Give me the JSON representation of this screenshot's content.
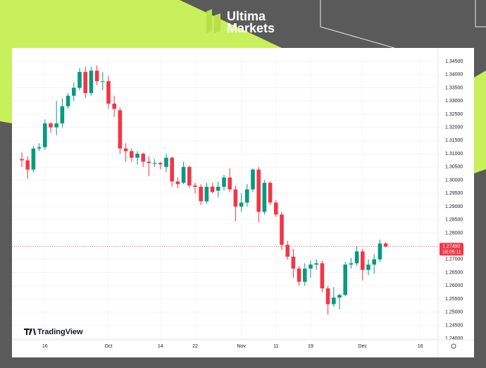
{
  "brand": {
    "line1": "Ultima",
    "line2": "Markets"
  },
  "chart_data": {
    "type": "candlestick",
    "watermark": "TradingView",
    "categories": [
      null,
      null,
      null,
      null,
      "16",
      null,
      null,
      null,
      null,
      null,
      null,
      null,
      null,
      null,
      null,
      "Oct",
      null,
      null,
      null,
      null,
      null,
      null,
      null,
      null,
      "14",
      null,
      null,
      null,
      null,
      null,
      "22",
      null,
      null,
      null,
      null,
      null,
      null,
      null,
      "Nov",
      null,
      null,
      null,
      null,
      null,
      "11",
      null,
      null,
      null,
      null,
      null,
      "19",
      null,
      null,
      null,
      null,
      null,
      null,
      null,
      null,
      "Dec",
      null,
      null,
      null,
      null,
      null,
      null,
      null,
      null,
      null,
      "16",
      null,
      null
    ],
    "open": [
      1.308,
      1.3075,
      1.304,
      1.312,
      1.3125,
      1.3215,
      1.32,
      1.3215,
      1.328,
      1.332,
      1.335,
      1.341,
      1.333,
      1.3415,
      1.3375,
      1.3375,
      1.329,
      1.3265,
      1.312,
      1.311,
      1.3085,
      1.31,
      1.307,
      1.3065,
      1.3065,
      1.305,
      1.3085,
      1.2995,
      1.299,
      1.305,
      1.298,
      1.2975,
      1.292,
      1.2975,
      1.296,
      1.2975,
      1.301,
      1.2965,
      1.29,
      1.2915,
      1.2965,
      1.304,
      1.288,
      1.299,
      1.2915,
      1.287,
      1.2755,
      1.271,
      1.2665,
      1.2615,
      1.2665,
      1.268,
      1.2685,
      1.259,
      1.253,
      1.2555,
      1.2565,
      1.268,
      1.2685,
      1.273,
      1.266,
      1.268,
      1.27,
      1.276,
      null,
      null,
      null,
      null,
      null,
      null,
      null,
      null
    ],
    "high": [
      1.3105,
      1.309,
      1.313,
      1.314,
      1.323,
      1.322,
      1.33,
      1.331,
      1.333,
      1.337,
      1.3425,
      1.343,
      1.343,
      1.3435,
      1.341,
      1.3395,
      1.332,
      1.3275,
      1.314,
      1.312,
      1.311,
      1.3105,
      1.309,
      1.308,
      1.307,
      1.31,
      1.309,
      1.301,
      1.307,
      1.3055,
      1.299,
      1.2985,
      1.299,
      1.299,
      1.2995,
      1.302,
      1.3045,
      1.298,
      1.295,
      1.2985,
      1.3045,
      1.305,
      1.3,
      1.2995,
      1.2925,
      1.288,
      1.277,
      1.274,
      1.2675,
      1.2685,
      1.2695,
      1.27,
      1.2695,
      1.26,
      1.2595,
      1.257,
      1.269,
      1.2705,
      1.275,
      1.274,
      1.27,
      1.272,
      1.2775,
      1.2765,
      null,
      null,
      null,
      null,
      null,
      null,
      null,
      null
    ],
    "low": [
      1.305,
      1.3005,
      1.303,
      1.311,
      1.3115,
      1.318,
      1.317,
      1.32,
      1.327,
      1.33,
      1.334,
      1.331,
      1.332,
      1.336,
      1.334,
      1.327,
      1.324,
      1.31,
      1.307,
      1.307,
      1.306,
      1.305,
      1.3015,
      1.305,
      1.304,
      1.303,
      1.2975,
      1.297,
      1.2985,
      1.297,
      1.295,
      1.2905,
      1.291,
      1.295,
      1.2935,
      1.296,
      1.2955,
      1.2845,
      1.288,
      1.29,
      1.2955,
      1.284,
      1.287,
      1.2905,
      1.286,
      1.2735,
      1.27,
      1.263,
      1.26,
      1.26,
      1.263,
      1.266,
      1.2575,
      1.249,
      1.252,
      1.251,
      1.256,
      1.2665,
      1.2675,
      1.262,
      1.264,
      1.2645,
      1.269,
      1.2745,
      null,
      null,
      null,
      null,
      null,
      null,
      null,
      null
    ],
    "close": [
      1.3075,
      1.304,
      1.312,
      1.3125,
      1.3215,
      1.32,
      1.3215,
      1.328,
      1.332,
      1.335,
      1.341,
      1.333,
      1.3415,
      1.3375,
      1.3375,
      1.329,
      1.327,
      1.312,
      1.311,
      1.3085,
      1.31,
      1.307,
      1.3065,
      1.3065,
      1.306,
      1.3085,
      1.2995,
      1.2985,
      1.305,
      1.298,
      1.2975,
      1.292,
      1.2975,
      1.2955,
      1.2975,
      1.301,
      1.2965,
      1.29,
      1.2915,
      1.2965,
      1.304,
      1.288,
      1.299,
      1.2915,
      1.287,
      1.2755,
      1.271,
      1.2665,
      1.2615,
      1.2665,
      1.268,
      1.2685,
      1.259,
      1.253,
      1.2555,
      1.2565,
      1.268,
      1.2685,
      1.273,
      1.266,
      1.268,
      1.27,
      1.276,
      1.2749,
      null,
      null,
      null,
      null,
      null,
      null,
      null,
      null
    ],
    "up_color": "#089981",
    "down_color": "#f23645",
    "ylim": [
      1.2379,
      1.3469
    ],
    "yticks": [
      {
        "value": 1.24,
        "label": "1.24000"
      },
      {
        "value": 1.245,
        "label": "1.24500"
      },
      {
        "value": 1.25,
        "label": "1.25000"
      },
      {
        "value": 1.255,
        "label": "1.25500"
      },
      {
        "value": 1.26,
        "label": "1.26000"
      },
      {
        "value": 1.265,
        "label": "1.26500"
      },
      {
        "value": 1.27,
        "label": "1.27000"
      },
      {
        "value": 1.275,
        "label": "1.27500"
      },
      {
        "value": 1.28,
        "label": "1.28000"
      },
      {
        "value": 1.285,
        "label": "1.28500"
      },
      {
        "value": 1.29,
        "label": "1.29000"
      },
      {
        "value": 1.295,
        "label": "1.29500"
      },
      {
        "value": 1.3,
        "label": "1.30000"
      },
      {
        "value": 1.305,
        "label": "1.30500"
      },
      {
        "value": 1.31,
        "label": "1.31000"
      },
      {
        "value": 1.315,
        "label": "1.31500"
      },
      {
        "value": 1.32,
        "label": "1.32000"
      },
      {
        "value": 1.325,
        "label": "1.32500"
      },
      {
        "value": 1.33,
        "label": "1.33000"
      },
      {
        "value": 1.335,
        "label": "1.33500"
      },
      {
        "value": 1.34,
        "label": "1.34000"
      },
      {
        "value": 1.345,
        "label": "1.34500"
      }
    ],
    "last_price": {
      "value": 1.2749,
      "label": "1.27490"
    },
    "countdown": "18:05:11",
    "grid": true
  }
}
